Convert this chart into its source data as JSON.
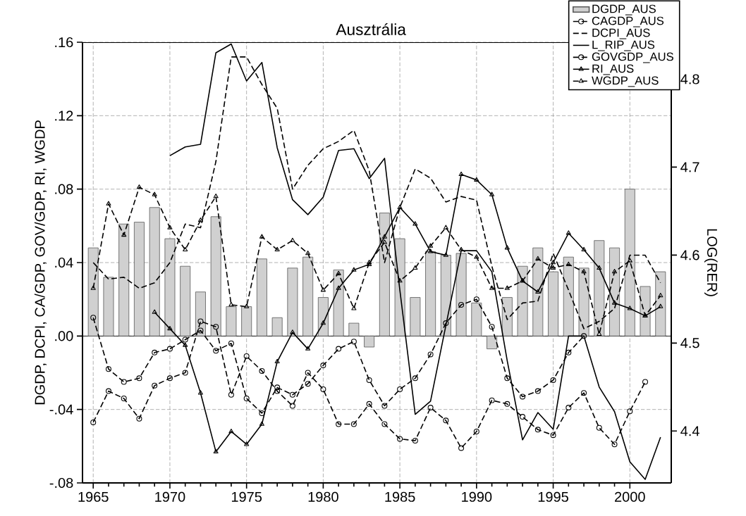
{
  "chart_data": {
    "type": "line",
    "title": "Ausztrália",
    "ylabel": "DGDP, DCPI, CA/GDP, GOV/GDP, RI, WGDP",
    "y2label": "LOG(RER)",
    "x": [
      1965,
      1966,
      1967,
      1968,
      1969,
      1970,
      1971,
      1972,
      1973,
      1974,
      1975,
      1976,
      1977,
      1978,
      1979,
      1980,
      1981,
      1982,
      1983,
      1984,
      1985,
      1986,
      1987,
      1988,
      1989,
      1990,
      1991,
      1992,
      1993,
      1994,
      1995,
      1996,
      1997,
      1998,
      1999,
      2000,
      2001,
      2002
    ],
    "xlim": [
      1964.3,
      2002.7
    ],
    "xticks": [
      1965,
      1970,
      1975,
      1980,
      1985,
      1990,
      1995,
      2000
    ],
    "ylim": [
      -0.08,
      0.16
    ],
    "yticks": [
      {
        "value": -0.08,
        "label": "-.08"
      },
      {
        "value": -0.04,
        "label": "-.04"
      },
      {
        "value": 0,
        "label": ".00"
      },
      {
        "value": 0.04,
        "label": ".04"
      },
      {
        "value": 0.08,
        "label": ".08"
      },
      {
        "value": 0.12,
        "label": ".12"
      },
      {
        "value": 0.16,
        "label": ".16"
      }
    ],
    "y2lim": [
      4.341,
      4.842
    ],
    "y2ticks": [
      4.4,
      4.5,
      4.6,
      4.7,
      4.8
    ],
    "grid": true,
    "legend": "top right",
    "series": [
      {
        "name": "DGDP_AUS",
        "type": "bar",
        "color": "#d0d0d0",
        "values": [
          0.048,
          0.032,
          0.061,
          0.062,
          0.07,
          0.053,
          0.038,
          0.024,
          0.065,
          0.016,
          0.016,
          0.042,
          0.01,
          0.037,
          0.043,
          0.021,
          0.036,
          0.007,
          -0.006,
          0.067,
          0.053,
          0.021,
          0.046,
          0.044,
          0.045,
          0.018,
          -0.007,
          0.021,
          0.038,
          0.048,
          0.035,
          0.043,
          0.037,
          0.052,
          0.048,
          0.08,
          0.027,
          0.035
        ]
      },
      {
        "name": "CAGDP_AUS",
        "color": "#000000",
        "marker": "circle",
        "line_style": "dashed",
        "x": [
          1965,
          1966,
          1967,
          1968,
          1969,
          1970,
          1971,
          1972,
          1973,
          1974,
          1975,
          1976,
          1977,
          1978,
          1979,
          1980,
          1981,
          1982,
          1983,
          1984,
          1985,
          1986,
          1987,
          1988,
          1989,
          1990,
          1991,
          1992,
          1993,
          1994,
          1995,
          1996,
          1997,
          1998,
          1999,
          2000,
          2001
        ],
        "values": [
          -0.047,
          -0.03,
          -0.034,
          -0.045,
          -0.027,
          -0.023,
          -0.02,
          0.008,
          0.005,
          -0.032,
          -0.011,
          -0.019,
          -0.03,
          -0.038,
          -0.02,
          -0.029,
          -0.048,
          -0.048,
          -0.037,
          -0.048,
          -0.056,
          -0.057,
          -0.039,
          -0.046,
          -0.061,
          -0.052,
          -0.035,
          -0.037,
          -0.044,
          -0.051,
          -0.054,
          -0.039,
          -0.031,
          -0.05,
          -0.059,
          -0.041,
          -0.025
        ]
      },
      {
        "name": "DCPI_AUS",
        "color": "#000000",
        "marker": "none",
        "line_style": "dashed",
        "values": [
          0.04,
          0.031,
          0.032,
          0.026,
          0.029,
          0.04,
          0.061,
          0.059,
          0.095,
          0.152,
          0.152,
          0.137,
          0.124,
          0.08,
          0.093,
          0.102,
          0.106,
          0.112,
          0.09,
          0.04,
          0.07,
          0.091,
          0.086,
          0.073,
          0.076,
          0.074,
          0.038,
          0.009,
          0.018,
          0.019,
          0.045,
          0.025,
          0.004,
          0.008,
          0.015,
          0.044,
          0.044,
          0.029
        ]
      },
      {
        "name": "L_RIP_AUS",
        "axis": "y2",
        "color": "#000000",
        "marker": "none",
        "line_style": "solid",
        "x": [
          1970,
          1971,
          1972,
          1973,
          1974,
          1975,
          1976,
          1977,
          1978,
          1979,
          1980,
          1981,
          1982,
          1983,
          1984,
          1985,
          1986,
          1987,
          1988,
          1989,
          1990,
          1991,
          1992,
          1993,
          1994,
          1995,
          1996,
          1997,
          1998,
          1999,
          2000,
          2001,
          2002
        ],
        "values": [
          4.713,
          4.723,
          4.726,
          4.83,
          4.84,
          4.798,
          4.819,
          4.722,
          4.663,
          4.646,
          4.666,
          4.719,
          4.721,
          4.687,
          4.71,
          4.56,
          4.419,
          4.434,
          4.52,
          4.605,
          4.605,
          4.581,
          4.48,
          4.39,
          4.421,
          4.402,
          4.508,
          4.508,
          4.45,
          4.422,
          4.365,
          4.345,
          4.393
        ]
      },
      {
        "name": "GOVGDP_AUS",
        "color": "#000000",
        "marker": "circle",
        "line_style": "dashed",
        "x": [
          1965,
          1966,
          1967,
          1968,
          1969,
          1970,
          1971,
          1972,
          1973,
          1974,
          1975,
          1976,
          1977,
          1978,
          1979,
          1980,
          1981,
          1982,
          1983,
          1984,
          1985,
          1986,
          1987,
          1988,
          1989,
          1990,
          1991,
          1992,
          1993,
          1994,
          1995,
          1996,
          1997
        ],
        "values": [
          0.01,
          -0.018,
          -0.025,
          -0.023,
          -0.009,
          -0.007,
          -0.002,
          0.003,
          -0.008,
          -0.004,
          -0.034,
          -0.042,
          -0.028,
          -0.032,
          -0.026,
          -0.016,
          -0.007,
          -0.003,
          -0.024,
          -0.038,
          -0.029,
          -0.023,
          -0.01,
          0.007,
          0.017,
          0.02,
          0.005,
          -0.023,
          -0.033,
          -0.03,
          -0.024,
          -0.009,
          0.0
        ]
      },
      {
        "name": "RI_AUS",
        "color": "#000000",
        "marker": "triangle",
        "line_style": "solid",
        "x": [
          1969,
          1970,
          1971,
          1972,
          1973,
          1974,
          1975,
          1976,
          1977,
          1978,
          1979,
          1980,
          1981,
          1982,
          1983,
          1984,
          1985,
          1986,
          1987,
          1988,
          1989,
          1990,
          1991,
          1992,
          1993,
          1994,
          1995,
          1996,
          1997,
          1998,
          1999,
          2000,
          2001,
          2002
        ],
        "values": [
          0.013,
          0.004,
          -0.005,
          -0.031,
          -0.063,
          -0.052,
          -0.059,
          -0.048,
          -0.014,
          0.002,
          -0.007,
          0.007,
          0.026,
          0.036,
          0.039,
          0.054,
          0.07,
          0.061,
          0.046,
          0.044,
          0.088,
          0.085,
          0.077,
          0.048,
          0.03,
          0.024,
          0.04,
          0.056,
          0.047,
          0.037,
          0.018,
          0.015,
          0.011,
          0.016
        ]
      },
      {
        "name": "WGDP_AUS",
        "color": "#000000",
        "marker": "triangle",
        "line_style": "dashed",
        "values": [
          0.026,
          0.072,
          0.055,
          0.081,
          0.077,
          0.059,
          0.047,
          0.063,
          0.076,
          0.017,
          0.016,
          0.054,
          0.047,
          0.052,
          0.045,
          0.025,
          0.034,
          0.015,
          0.04,
          0.051,
          0.03,
          0.037,
          0.049,
          0.059,
          0.047,
          0.043,
          0.026,
          0.026,
          0.03,
          0.042,
          0.037,
          0.039,
          0.035,
          0.001,
          0.035,
          0.041,
          0.011,
          0.022
        ]
      }
    ]
  }
}
